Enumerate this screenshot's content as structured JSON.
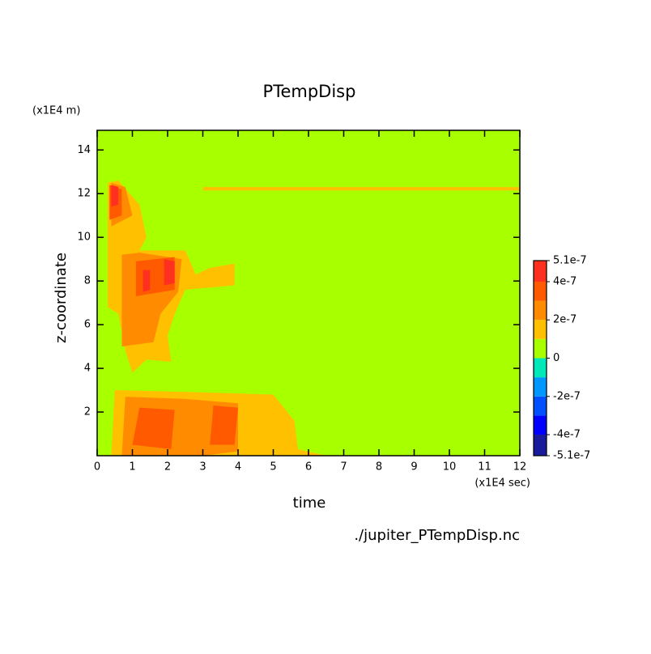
{
  "chart_data": {
    "type": "contour",
    "title": "PTempDisp",
    "y_unit": "(x1E4 m)",
    "x_unit": "(x1E4 sec)",
    "x_label": "time",
    "y_label": "z-coordinate",
    "source": "./jupiter_PTempDisp.nc",
    "xlim": [
      0,
      12
    ],
    "ylim": [
      0,
      14.9
    ],
    "xticks": [
      0,
      1,
      2,
      3,
      4,
      5,
      6,
      7,
      8,
      9,
      10,
      11,
      12
    ],
    "yticks": [
      2,
      4,
      6,
      8,
      10,
      12,
      14
    ],
    "levels": [
      -5.1e-07,
      -4e-07,
      -3e-07,
      -2e-07,
      -1e-07,
      0,
      1e-07,
      2e-07,
      3e-07,
      4e-07,
      5.1e-07
    ],
    "colors": [
      "#1a1a9c",
      "#0000ff",
      "#0050ff",
      "#0098ff",
      "#00e8b8",
      "#a8ff00",
      "#ffc000",
      "#ff8c00",
      "#ff5a00",
      "#ff3020"
    ],
    "colorbar_ticks": [
      5.1e-07,
      4e-07,
      2e-07,
      0,
      -2e-07,
      -4e-07,
      -5.1e-07
    ],
    "regions": [
      {
        "level": 0,
        "points": [
          [
            0,
            0
          ],
          [
            12,
            0
          ],
          [
            12,
            14.9
          ],
          [
            0,
            14.9
          ]
        ]
      },
      {
        "level": 1e-07,
        "points": [
          [
            0.3,
            6.8
          ],
          [
            0.3,
            12.5
          ],
          [
            0.6,
            12.6
          ],
          [
            1.2,
            11.5
          ],
          [
            1.4,
            10
          ],
          [
            1.2,
            9.4
          ],
          [
            2.5,
            9.4
          ],
          [
            2.8,
            8.3
          ],
          [
            3.2,
            8.6
          ],
          [
            3.9,
            8.8
          ],
          [
            3.9,
            7.8
          ],
          [
            2.5,
            7.6
          ],
          [
            2.2,
            6.5
          ],
          [
            2,
            5.5
          ],
          [
            2.1,
            4.3
          ],
          [
            1.4,
            4.4
          ],
          [
            1,
            3.8
          ],
          [
            0.8,
            4.8
          ],
          [
            0.6,
            6.5
          ]
        ]
      },
      {
        "level": 1e-07,
        "points": [
          [
            3,
            12.15
          ],
          [
            12,
            12.15
          ],
          [
            12,
            12.3
          ],
          [
            3,
            12.3
          ]
        ]
      },
      {
        "level": 1e-07,
        "points": [
          [
            0.4,
            0
          ],
          [
            0.5,
            3
          ],
          [
            3,
            2.9
          ],
          [
            5,
            2.8
          ],
          [
            5.6,
            1.6
          ],
          [
            5.7,
            0.3
          ],
          [
            6.5,
            0
          ]
        ]
      },
      {
        "level": 2e-07,
        "points": [
          [
            0.7,
            5
          ],
          [
            0.7,
            9.2
          ],
          [
            1.2,
            9.3
          ],
          [
            2.4,
            9
          ],
          [
            2.3,
            7.5
          ],
          [
            1.8,
            6.5
          ],
          [
            1.6,
            5.2
          ]
        ]
      },
      {
        "level": 2e-07,
        "points": [
          [
            0.4,
            10.5
          ],
          [
            0.4,
            12.5
          ],
          [
            0.8,
            12.3
          ],
          [
            1,
            11
          ]
        ]
      },
      {
        "level": 2e-07,
        "points": [
          [
            0.7,
            0
          ],
          [
            0.8,
            2.7
          ],
          [
            2.5,
            2.6
          ],
          [
            4,
            2.4
          ],
          [
            4,
            0.2
          ],
          [
            3,
            0
          ]
        ]
      },
      {
        "level": 3e-07,
        "points": [
          [
            1.1,
            7.3
          ],
          [
            1.1,
            8.9
          ],
          [
            2.2,
            9.1
          ],
          [
            2.2,
            7.6
          ]
        ]
      },
      {
        "level": 3e-07,
        "points": [
          [
            0.35,
            10.8
          ],
          [
            0.35,
            12.4
          ],
          [
            0.7,
            12.2
          ],
          [
            0.7,
            11
          ]
        ]
      },
      {
        "level": 3e-07,
        "points": [
          [
            3.2,
            0.5
          ],
          [
            3.3,
            2.3
          ],
          [
            4,
            2.2
          ],
          [
            3.9,
            0.5
          ]
        ]
      },
      {
        "level": 3e-07,
        "points": [
          [
            1,
            0.5
          ],
          [
            1.2,
            2.2
          ],
          [
            2.2,
            2.1
          ],
          [
            2.1,
            0.3
          ]
        ]
      },
      {
        "level": 4e-07,
        "points": [
          [
            0.4,
            11.4
          ],
          [
            0.4,
            12.4
          ],
          [
            0.6,
            12.3
          ],
          [
            0.6,
            11.5
          ]
        ]
      },
      {
        "level": 4e-07,
        "points": [
          [
            1.9,
            7.8
          ],
          [
            1.9,
            9
          ],
          [
            2.2,
            8.9
          ],
          [
            2.2,
            7.9
          ]
        ]
      },
      {
        "level": 4e-07,
        "points": [
          [
            1.3,
            7.5
          ],
          [
            1.3,
            8.5
          ],
          [
            1.5,
            8.5
          ],
          [
            1.5,
            7.6
          ]
        ]
      }
    ]
  }
}
